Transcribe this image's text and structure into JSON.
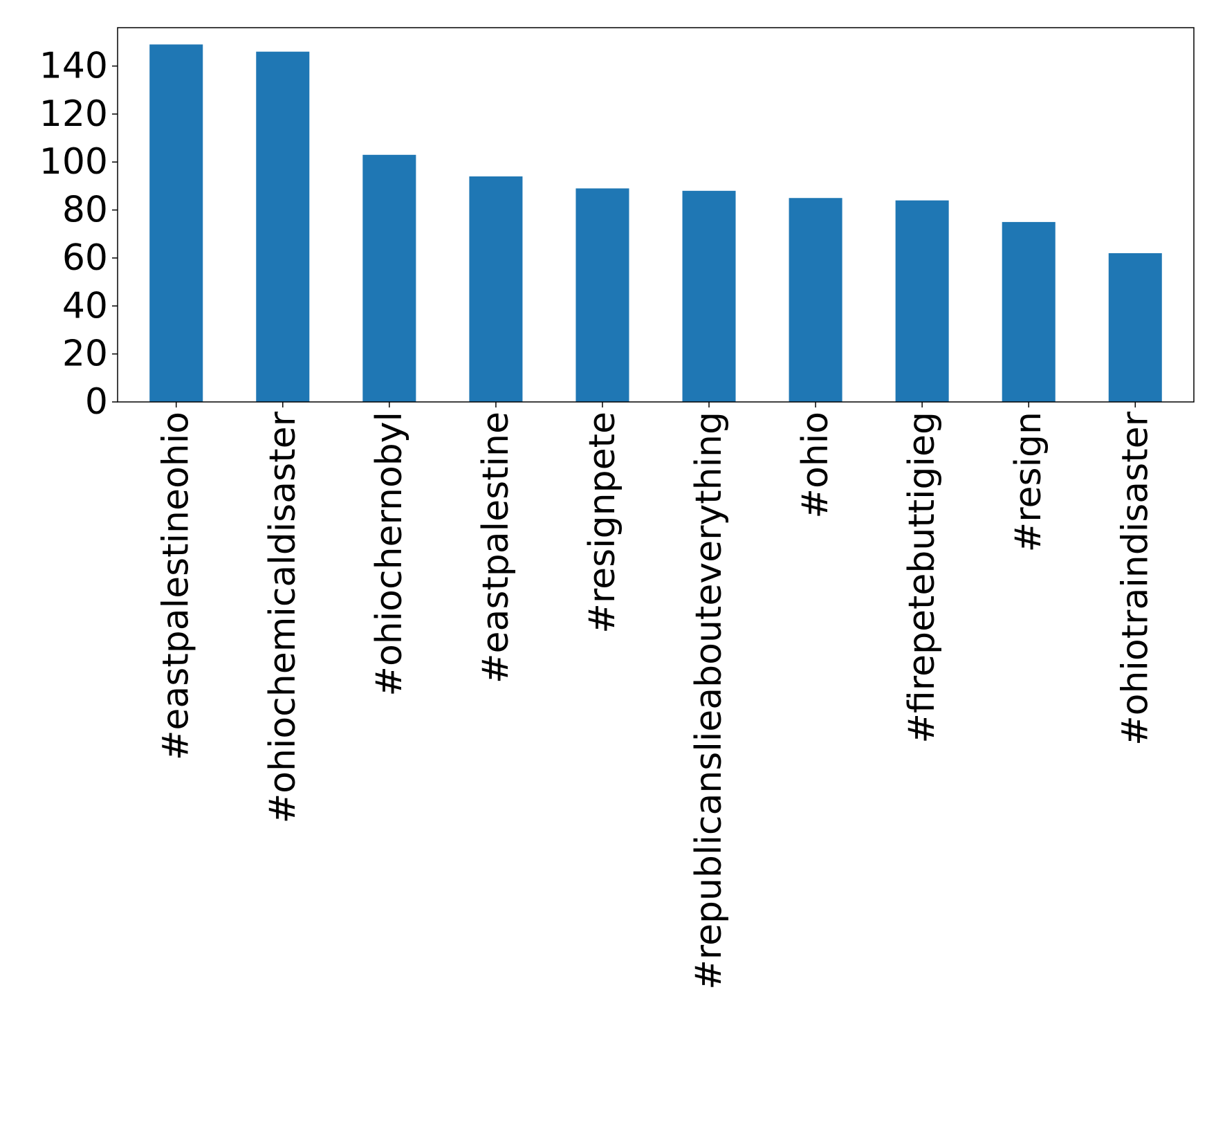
{
  "chart_data": {
    "type": "bar",
    "categories": [
      "#eastpalestineohio",
      "#ohiochemicaldisaster",
      "#ohiochernobyl",
      "#eastpalestine",
      "#resignpete",
      "#republicanslieabouteverything",
      "#ohio",
      "#firepetebuttigieg",
      "#resign",
      "#ohiotraindisaster"
    ],
    "values": [
      149,
      146,
      103,
      94,
      89,
      88,
      85,
      84,
      75,
      62
    ],
    "yticks": [
      "0",
      "20",
      "40",
      "60",
      "80",
      "100",
      "120",
      "140"
    ],
    "ylim": [
      0,
      156
    ],
    "color": "#1f77b4",
    "grid": false,
    "legend": "none"
  }
}
